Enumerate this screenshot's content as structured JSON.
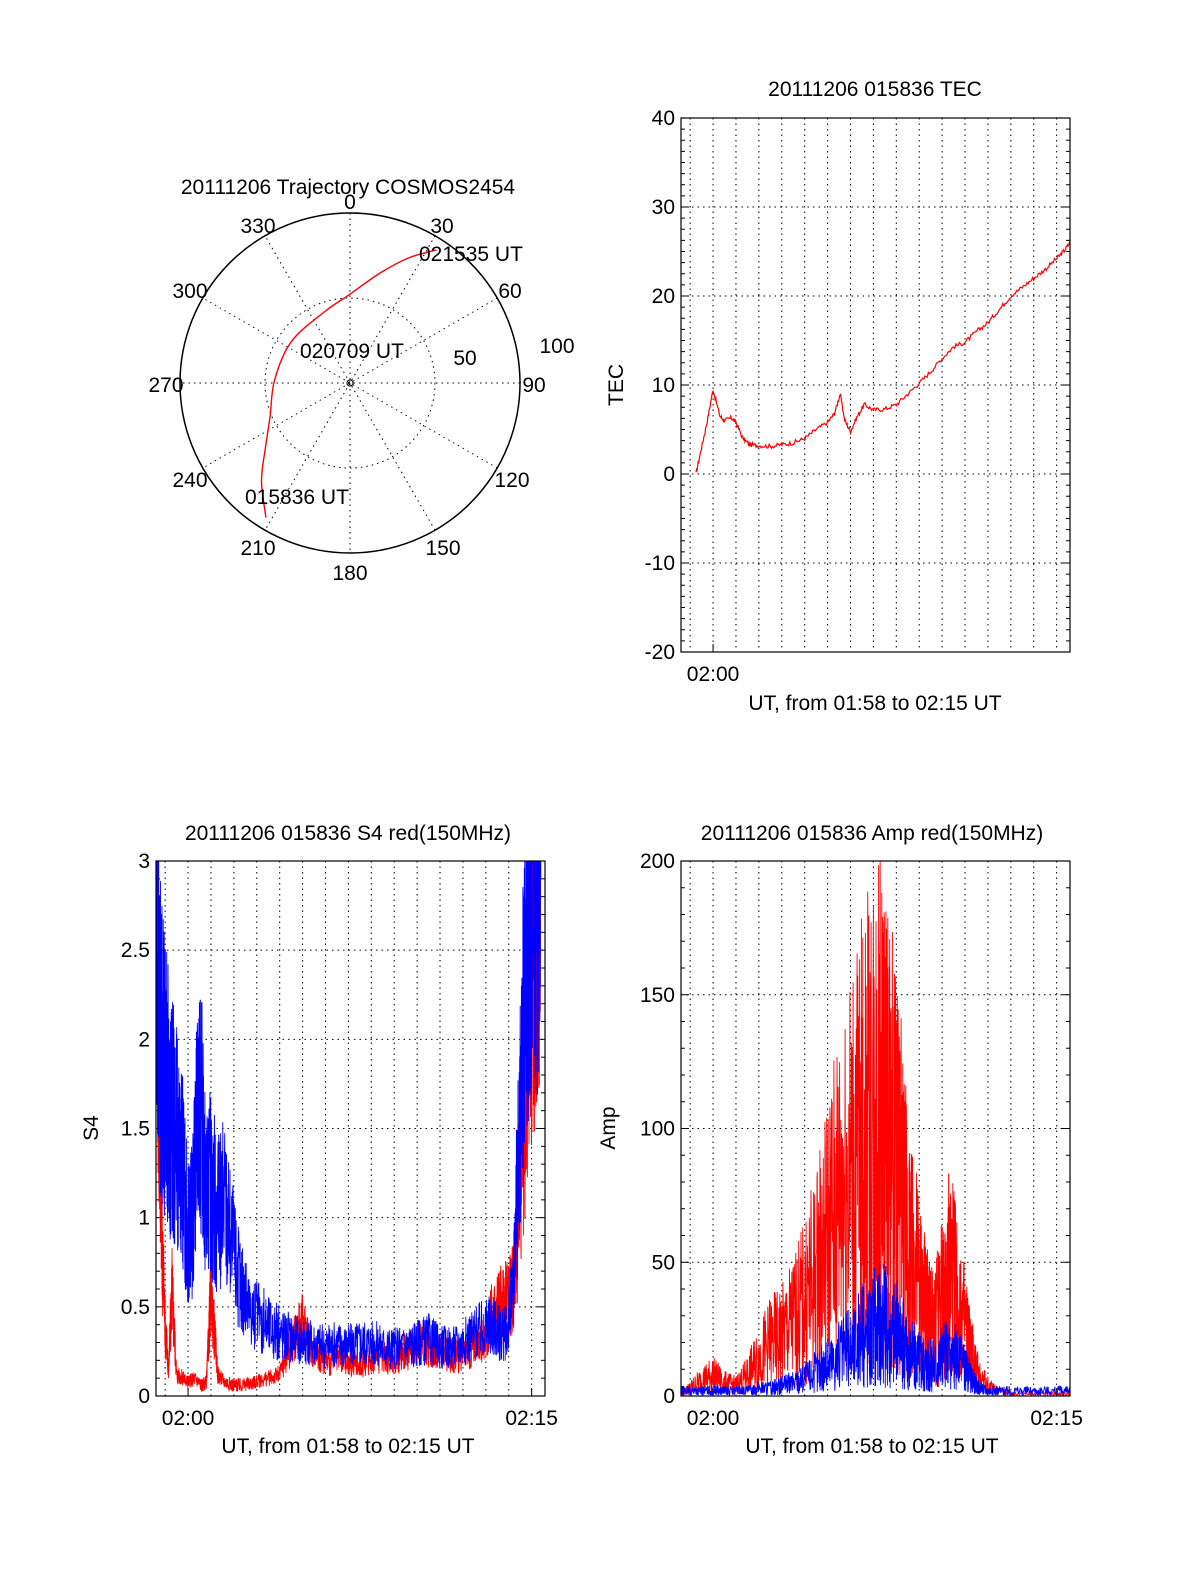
{
  "chart_data": [
    {
      "id": "trajectory",
      "type": "polar",
      "title": "20111206 Trajectory COSMOS2454",
      "azimuth_labels": [
        "0",
        "30",
        "60",
        "90",
        "120",
        "150",
        "180",
        "210",
        "240",
        "270",
        "300",
        "330"
      ],
      "radius_labels": [
        "50",
        "100"
      ],
      "track": {
        "color": "#ff0000",
        "points": [
          {
            "az": 212,
            "el": 6
          },
          {
            "az": 222,
            "el": 20
          },
          {
            "az": 232,
            "el": 33
          },
          {
            "az": 247,
            "el": 44
          },
          {
            "az": 272,
            "el": 50
          },
          {
            "az": 305,
            "el": 52
          },
          {
            "az": 340,
            "el": 50
          },
          {
            "az": 0,
            "el": 43
          },
          {
            "az": 15,
            "el": 30
          },
          {
            "az": 25,
            "el": 17
          },
          {
            "az": 33,
            "el": 6
          }
        ]
      },
      "annotations": {
        "start": "015836 UT",
        "middle": "020709 UT",
        "end": "021535 UT"
      }
    },
    {
      "id": "tec",
      "type": "line",
      "title": "20111206 015836 TEC",
      "xlabel": "UT, from 01:58 to 02:15 UT",
      "ylabel": "TEC",
      "xlim": [
        118.6,
        135.583
      ],
      "ylim": [
        -20,
        40
      ],
      "yticks": [
        "-20",
        "-10",
        "0",
        "10",
        "20",
        "30",
        "40"
      ],
      "xticks": [
        {
          "value": 120,
          "label": "02:00"
        }
      ],
      "series": [
        {
          "color": "#ff0000",
          "x": [
            119.25,
            119.5,
            119.75,
            120.0,
            120.3,
            120.5,
            120.8,
            121.0,
            121.3,
            121.6,
            122.0,
            122.5,
            123.0,
            123.5,
            124.0,
            124.5,
            125.0,
            125.3,
            125.55,
            125.75,
            126.0,
            126.3,
            126.6,
            127.0,
            127.5,
            128.0,
            128.5,
            129.0,
            129.5,
            130.0,
            130.5,
            131.0,
            131.5,
            132.0,
            132.5,
            133.0,
            133.5,
            134.0,
            134.5,
            135.0,
            135.3,
            135.583
          ],
          "y": [
            0,
            3,
            6,
            9.5,
            6.5,
            6,
            6.3,
            5.8,
            4,
            3.3,
            3.2,
            3.1,
            3.3,
            3.5,
            4.0,
            5.0,
            5.8,
            6.8,
            9.0,
            6.0,
            4.8,
            6.5,
            7.8,
            7.2,
            7.3,
            7.8,
            9.0,
            10.2,
            11.5,
            13.0,
            14.3,
            14.8,
            16.0,
            17.0,
            18.5,
            20.0,
            21.0,
            22.0,
            23.0,
            24.2,
            25.0,
            26.0
          ]
        }
      ]
    },
    {
      "id": "s4",
      "type": "line",
      "title": "20111206 015836 S4 red(150MHz)",
      "xlabel": "UT, from 01:58 to 02:15 UT",
      "ylabel": "S4",
      "xlim": [
        118.6,
        135.583
      ],
      "ylim": [
        0,
        3
      ],
      "yticks": [
        "0",
        "0.5",
        "1",
        "1.5",
        "2",
        "2.5",
        "3"
      ],
      "xticks": [
        {
          "value": 120,
          "label": "02:00"
        },
        {
          "value": 135,
          "label": "02:15"
        }
      ],
      "series": [
        {
          "color": "#ff0000",
          "x": [
            118.6,
            118.75,
            118.85,
            119.0,
            119.15,
            119.3,
            119.5,
            119.8,
            120.0,
            120.3,
            120.6,
            120.8,
            121.0,
            121.3,
            121.6,
            122.0,
            122.3,
            122.7,
            123.0,
            123.5,
            124.0,
            124.5,
            125.0,
            125.5,
            126.0,
            126.5,
            127.0,
            127.5,
            128.0,
            128.5,
            129.0,
            129.5,
            130.0,
            130.5,
            131.0,
            131.5,
            132.0,
            132.5,
            133.0,
            133.3,
            133.6,
            133.9,
            134.2,
            134.5,
            134.8,
            135.1,
            135.4
          ],
          "y": [
            2.8,
            1.8,
            0.9,
            0.4,
            0.15,
            0.6,
            0.12,
            0.1,
            0.08,
            0.1,
            0.06,
            0.08,
            0.6,
            0.12,
            0.08,
            0.06,
            0.06,
            0.07,
            0.08,
            0.1,
            0.12,
            0.3,
            0.4,
            0.25,
            0.2,
            0.2,
            0.18,
            0.18,
            0.22,
            0.22,
            0.2,
            0.25,
            0.3,
            0.28,
            0.25,
            0.22,
            0.22,
            0.3,
            0.35,
            0.45,
            0.5,
            0.55,
            0.6,
            1.2,
            2.0,
            2.6,
            2.9
          ]
        },
        {
          "color": "#0000ff",
          "x": [
            118.6,
            118.8,
            119.0,
            119.2,
            119.4,
            119.6,
            119.8,
            120.0,
            120.2,
            120.4,
            120.6,
            120.8,
            121.0,
            121.3,
            121.6,
            122.0,
            122.3,
            122.6,
            123.0,
            123.5,
            124.0,
            124.5,
            125.0,
            125.5,
            126.0,
            126.5,
            127.0,
            127.5,
            128.0,
            128.5,
            129.0,
            129.5,
            130.0,
            130.5,
            131.0,
            131.5,
            132.0,
            132.5,
            133.0,
            133.3,
            133.6,
            133.9,
            134.2,
            134.5,
            134.8,
            135.1,
            135.4
          ],
          "y": [
            2.5,
            2.0,
            1.8,
            1.6,
            1.5,
            1.4,
            1.2,
            0.9,
            1.0,
            1.5,
            1.6,
            1.1,
            1.2,
            1.0,
            1.1,
            0.8,
            0.6,
            0.5,
            0.45,
            0.4,
            0.35,
            0.33,
            0.32,
            0.3,
            0.28,
            0.3,
            0.28,
            0.3,
            0.3,
            0.28,
            0.27,
            0.28,
            0.3,
            0.32,
            0.28,
            0.27,
            0.3,
            0.35,
            0.38,
            0.4,
            0.35,
            0.35,
            0.6,
            1.6,
            2.6,
            2.9,
            2.9
          ]
        }
      ]
    },
    {
      "id": "amp",
      "type": "line",
      "title": "20111206 015836 Amp red(150MHz)",
      "xlabel": "UT, from 01:58 to 02:15 UT",
      "ylabel": "Amp",
      "xlim": [
        118.6,
        135.583
      ],
      "ylim": [
        0,
        200
      ],
      "yticks": [
        "0",
        "50",
        "100",
        "150",
        "200"
      ],
      "xticks": [
        {
          "value": 120,
          "label": "02:00"
        },
        {
          "value": 135,
          "label": "02:15"
        }
      ],
      "series": [
        {
          "color": "#ff0000",
          "x": [
            118.6,
            119.0,
            119.5,
            120.0,
            120.5,
            121.0,
            121.5,
            122.0,
            122.5,
            123.0,
            123.5,
            124.0,
            124.5,
            125.0,
            125.5,
            126.0,
            126.5,
            127.0,
            127.3,
            127.6,
            128.0,
            128.3,
            128.6,
            129.0,
            129.3,
            129.6,
            130.0,
            130.3,
            130.6,
            131.0,
            131.3,
            131.6,
            132.0,
            132.5,
            133.0,
            134.0,
            135.0,
            135.583
          ],
          "y": [
            1,
            3,
            6,
            8,
            5,
            4,
            8,
            14,
            20,
            22,
            28,
            35,
            45,
            60,
            75,
            85,
            95,
            105,
            110,
            100,
            85,
            70,
            55,
            40,
            30,
            25,
            35,
            45,
            40,
            25,
            15,
            8,
            4,
            2,
            1,
            1,
            1,
            1
          ]
        },
        {
          "color": "#0000ff",
          "x": [
            118.6,
            119.0,
            119.5,
            120.0,
            120.5,
            121.0,
            121.5,
            122.0,
            122.5,
            123.0,
            123.5,
            124.0,
            124.5,
            125.0,
            125.5,
            126.0,
            126.5,
            127.0,
            127.3,
            127.6,
            128.0,
            128.3,
            128.6,
            129.0,
            129.3,
            129.6,
            130.0,
            130.3,
            130.6,
            131.0,
            131.3,
            131.6,
            132.0,
            132.5,
            133.0,
            134.0,
            135.0,
            135.583
          ],
          "y": [
            2,
            2,
            2,
            2,
            2,
            2,
            2,
            3,
            3,
            4,
            5,
            7,
            9,
            12,
            15,
            18,
            22,
            25,
            27,
            26,
            24,
            20,
            16,
            14,
            12,
            12,
            14,
            16,
            14,
            10,
            6,
            3,
            2,
            2,
            2,
            2,
            2,
            2
          ]
        }
      ]
    }
  ]
}
